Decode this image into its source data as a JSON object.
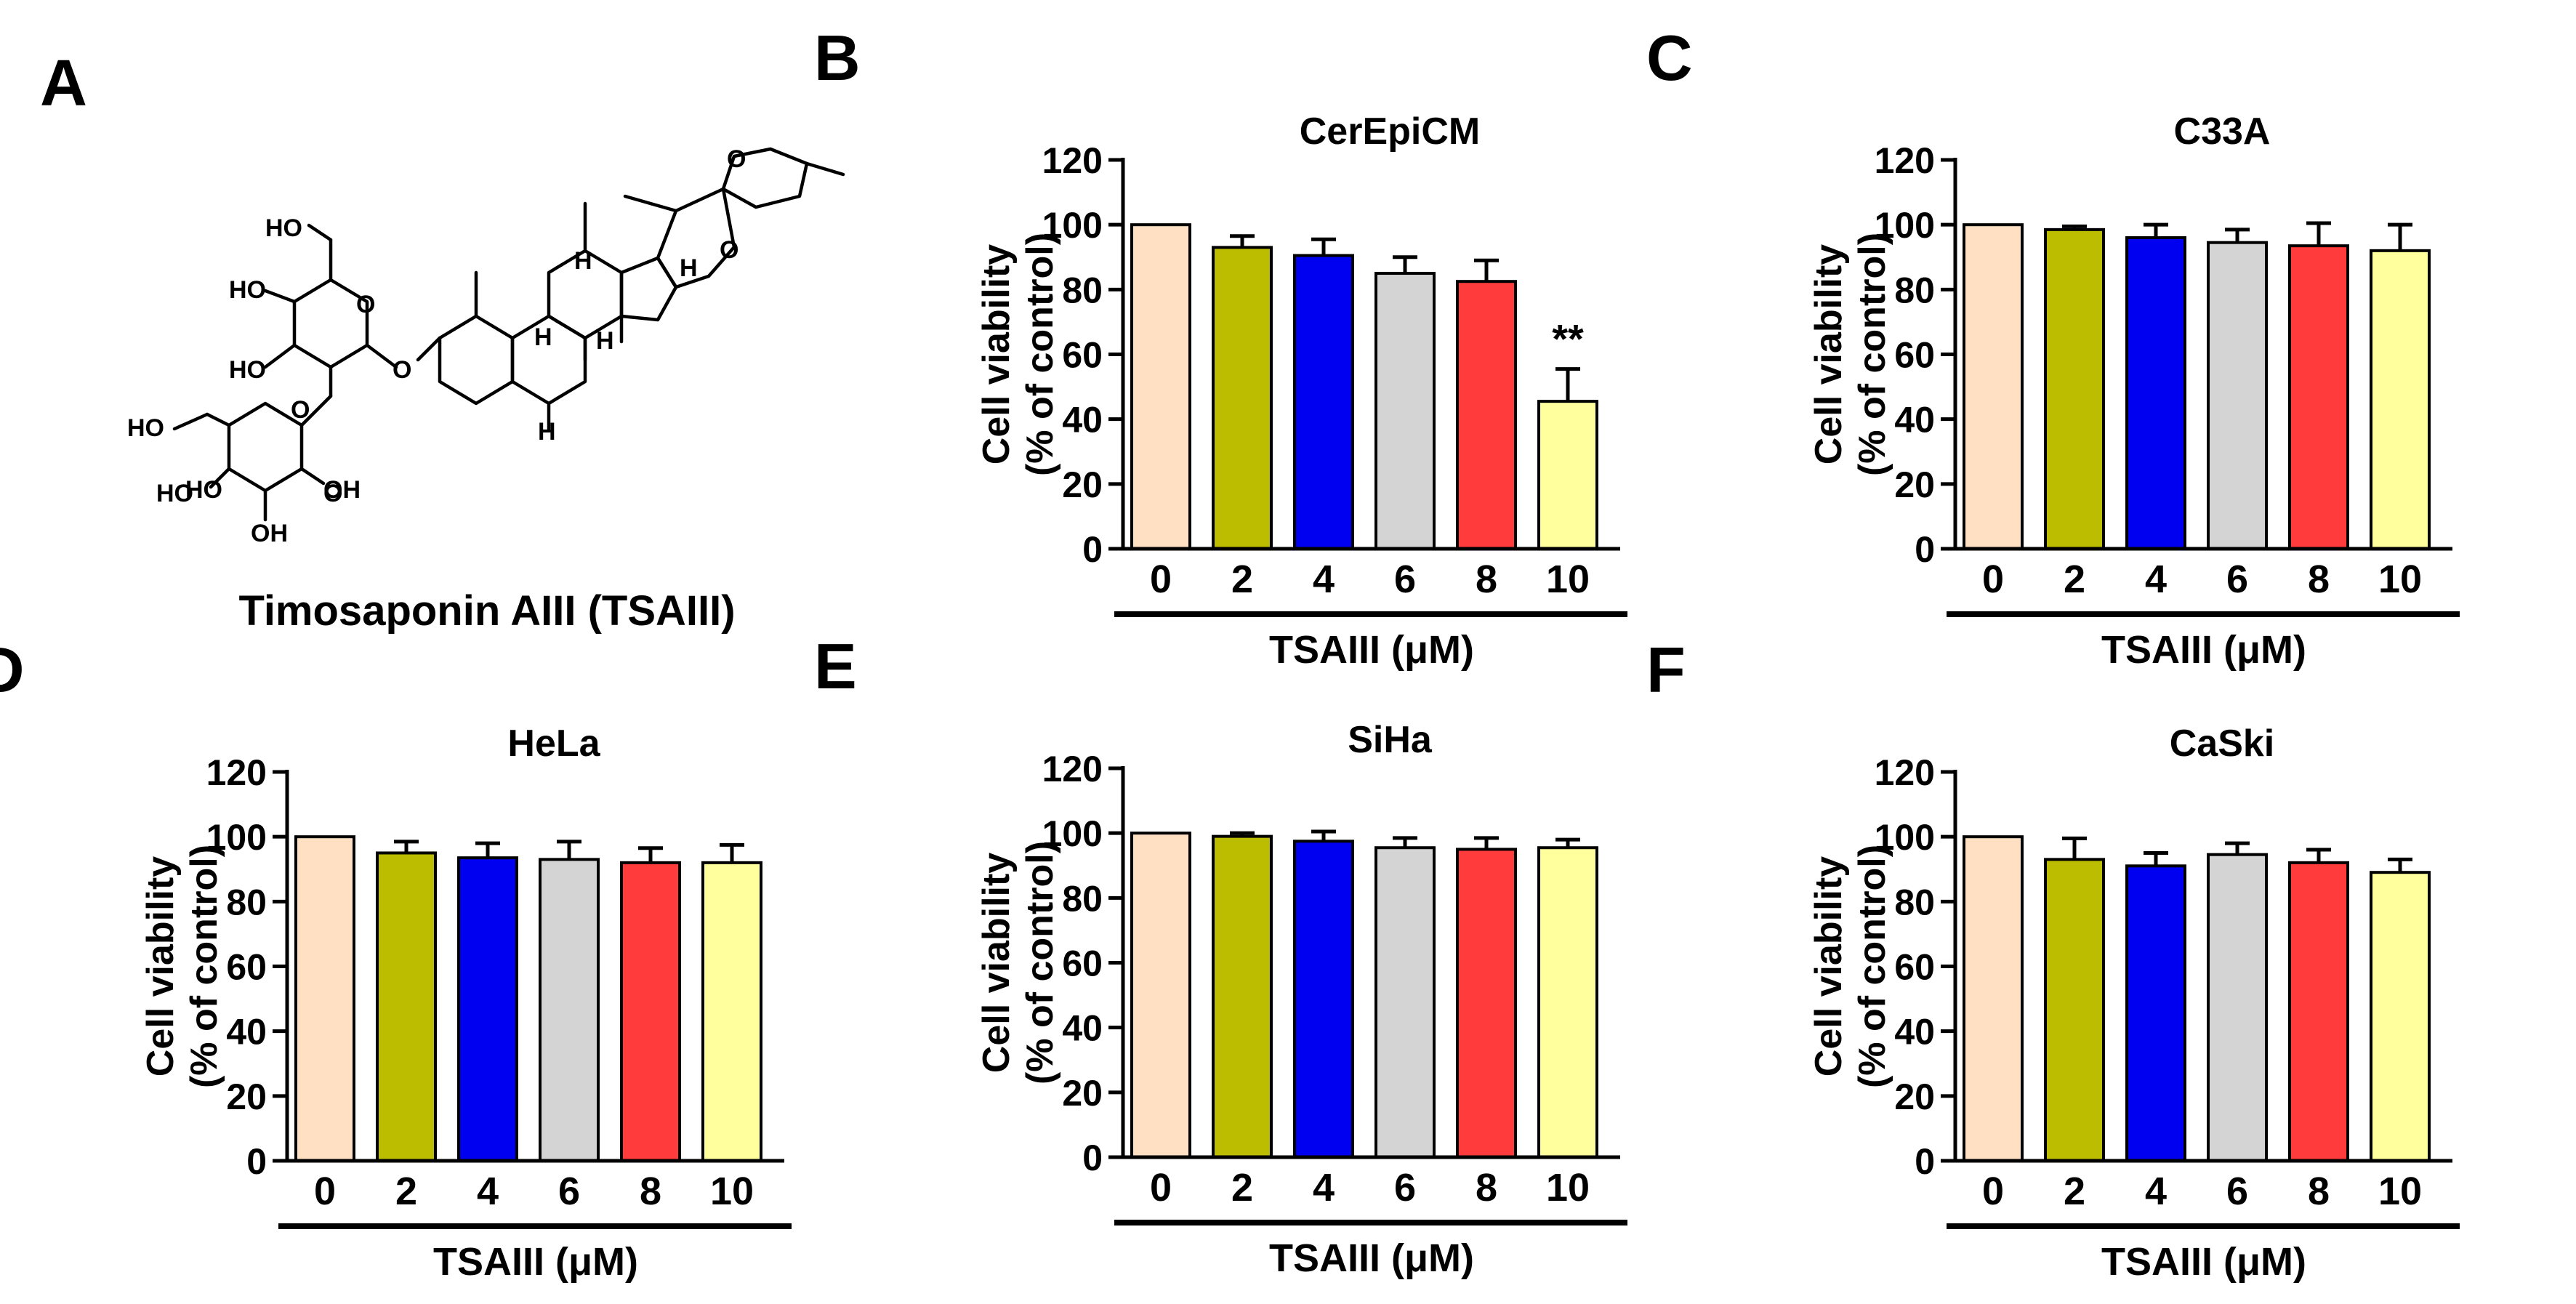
{
  "figure": {
    "molecule": {
      "panel_label": "A",
      "name": "Timosaponin AIII (TSAIII)",
      "groups": [
        "HO",
        "HO",
        "HO",
        "HO",
        "HO",
        "HO",
        "OH",
        "OH",
        "O",
        "O",
        "O",
        "O",
        "O",
        "O",
        "H",
        "H",
        "H",
        "H",
        "H"
      ]
    }
  },
  "colors": {
    "bars": [
      "#FFE0C2",
      "#BCBC00",
      "#0000F0",
      "#D4D4D4",
      "#FF3B3B",
      "#FFFF9E"
    ],
    "ink": "#000000"
  },
  "chart_data": [
    {
      "panel_label": "B",
      "type": "bar",
      "title": "CerEpiCM",
      "categories": [
        "0",
        "2",
        "4",
        "6",
        "8",
        "10"
      ],
      "values": [
        100,
        93,
        90.5,
        85,
        82.5,
        45.5
      ],
      "errors": [
        0,
        3.5,
        5,
        5,
        6.5,
        10
      ],
      "annotations": [
        "",
        "",
        "",
        "",
        "",
        "**"
      ],
      "ylabel_line1": "Cell viability",
      "ylabel_line2": "(% of control)",
      "xlabel": "TSAIII (μM)",
      "ylim": [
        0,
        120
      ],
      "yticks": [
        "0",
        "20",
        "40",
        "60",
        "80",
        "100",
        "120"
      ]
    },
    {
      "panel_label": "C",
      "type": "bar",
      "title": "C33A",
      "categories": [
        "0",
        "2",
        "4",
        "6",
        "8",
        "10"
      ],
      "values": [
        100,
        98.5,
        96,
        94.5,
        93.5,
        92
      ],
      "errors": [
        0,
        1,
        4,
        4,
        7,
        8
      ],
      "annotations": [
        "",
        "",
        "",
        "",
        "",
        ""
      ],
      "ylabel_line1": "Cell viability",
      "ylabel_line2": "(% of control)",
      "xlabel": "TSAIII (μM)",
      "ylim": [
        0,
        120
      ],
      "yticks": [
        "0",
        "20",
        "40",
        "60",
        "80",
        "100",
        "120"
      ]
    },
    {
      "panel_label": "D",
      "type": "bar",
      "title": "HeLa",
      "categories": [
        "0",
        "2",
        "4",
        "6",
        "8",
        "10"
      ],
      "values": [
        100,
        95,
        93.5,
        93,
        92,
        92
      ],
      "errors": [
        0,
        3.5,
        4.5,
        5.5,
        4.5,
        5.5
      ],
      "annotations": [
        "",
        "",
        "",
        "",
        "",
        ""
      ],
      "ylabel_line1": "Cell viability",
      "ylabel_line2": "(% of control)",
      "xlabel": "TSAIII (μM)",
      "ylim": [
        0,
        120
      ],
      "yticks": [
        "0",
        "20",
        "40",
        "60",
        "80",
        "100",
        "120"
      ]
    },
    {
      "panel_label": "E",
      "type": "bar",
      "title": "SiHa",
      "categories": [
        "0",
        "2",
        "4",
        "6",
        "8",
        "10"
      ],
      "values": [
        100,
        99,
        97.5,
        95.5,
        95,
        95.5
      ],
      "errors": [
        0,
        1,
        3,
        3,
        3.5,
        2.5
      ],
      "annotations": [
        "",
        "",
        "",
        "",
        "",
        ""
      ],
      "ylabel_line1": "Cell viability",
      "ylabel_line2": "(% of control)",
      "xlabel": "TSAIII (μM)",
      "ylim": [
        0,
        120
      ],
      "yticks": [
        "0",
        "20",
        "40",
        "60",
        "80",
        "100",
        "120"
      ]
    },
    {
      "panel_label": "F",
      "type": "bar",
      "title": "CaSki",
      "categories": [
        "0",
        "2",
        "4",
        "6",
        "8",
        "10"
      ],
      "values": [
        100,
        93,
        91,
        94.5,
        92,
        89
      ],
      "errors": [
        0,
        6.5,
        4,
        3.5,
        4,
        4
      ],
      "annotations": [
        "",
        "",
        "",
        "",
        "",
        ""
      ],
      "ylabel_line1": "Cell viability",
      "ylabel_line2": "(% of control)",
      "xlabel": "TSAIII (μM)",
      "ylim": [
        0,
        120
      ],
      "yticks": [
        "0",
        "20",
        "40",
        "60",
        "80",
        "100",
        "120"
      ]
    }
  ]
}
